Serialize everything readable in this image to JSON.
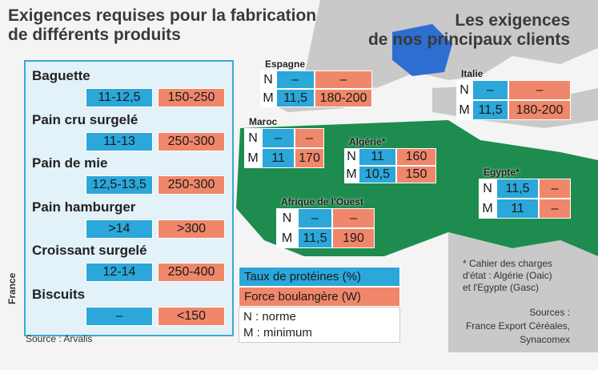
{
  "left_panel": {
    "title_lines": [
      "Exigences requises pour la fabrication",
      "de différents produits"
    ],
    "country_label": "France",
    "source": "Source : Arvalis",
    "products": [
      {
        "name": "Baguette",
        "protein": "11-12,5",
        "strength": "150-250"
      },
      {
        "name": "Pain cru surgelé",
        "protein": "11-13",
        "strength": "250-300"
      },
      {
        "name": "Pain de mie",
        "protein": "12,5-13,5",
        "strength": "250-300"
      },
      {
        "name": "Pain hamburger",
        "protein": ">14",
        "strength": ">300"
      },
      {
        "name": "Croissant surgelé",
        "protein": "12-14",
        "strength": "250-400"
      },
      {
        "name": "Biscuits",
        "protein": "–",
        "strength": "<150"
      }
    ]
  },
  "right_panel": {
    "title_lines": [
      "Les exigences",
      "de nos principaux clients"
    ],
    "clients": [
      {
        "country": "Espagne",
        "rows": [
          {
            "code": "N",
            "protein": "–",
            "strength": "–"
          },
          {
            "code": "M",
            "protein": "11,5",
            "strength": "180-200"
          }
        ]
      },
      {
        "country": "Italie",
        "rows": [
          {
            "code": "N",
            "protein": "–",
            "strength": "–"
          },
          {
            "code": "M",
            "protein": "11,5",
            "strength": "180-200"
          }
        ]
      },
      {
        "country": "Maroc",
        "rows": [
          {
            "code": "N",
            "protein": "–",
            "strength": "–"
          },
          {
            "code": "M",
            "protein": "11",
            "strength": "170"
          }
        ]
      },
      {
        "country": "Algérie*",
        "rows": [
          {
            "code": "N",
            "protein": "11",
            "strength": "160"
          },
          {
            "code": "M",
            "protein": "10,5",
            "strength": "150"
          }
        ]
      },
      {
        "country": "Egypte*",
        "rows": [
          {
            "code": "N",
            "protein": "11,5",
            "strength": "–"
          },
          {
            "code": "M",
            "protein": "11",
            "strength": "–"
          }
        ]
      },
      {
        "country": "Afrique de l'Ouest",
        "rows": [
          {
            "code": "N",
            "protein": "–",
            "strength": "–"
          },
          {
            "code": "M",
            "protein": "11,5",
            "strength": "190"
          }
        ]
      }
    ]
  },
  "legend": {
    "protein": "Taux de protéines (%)",
    "strength": "Force boulangère (W)",
    "n": "N : norme",
    "m": "M : minimum"
  },
  "footnote_lines": [
    "* Cahier des charges",
    "d'état : Algérie (Oaic)",
    "et l'Egypte (Gasc)"
  ],
  "sources_lines": [
    "Sources :",
    "France Export Céréales,",
    "Synacomex"
  ]
}
